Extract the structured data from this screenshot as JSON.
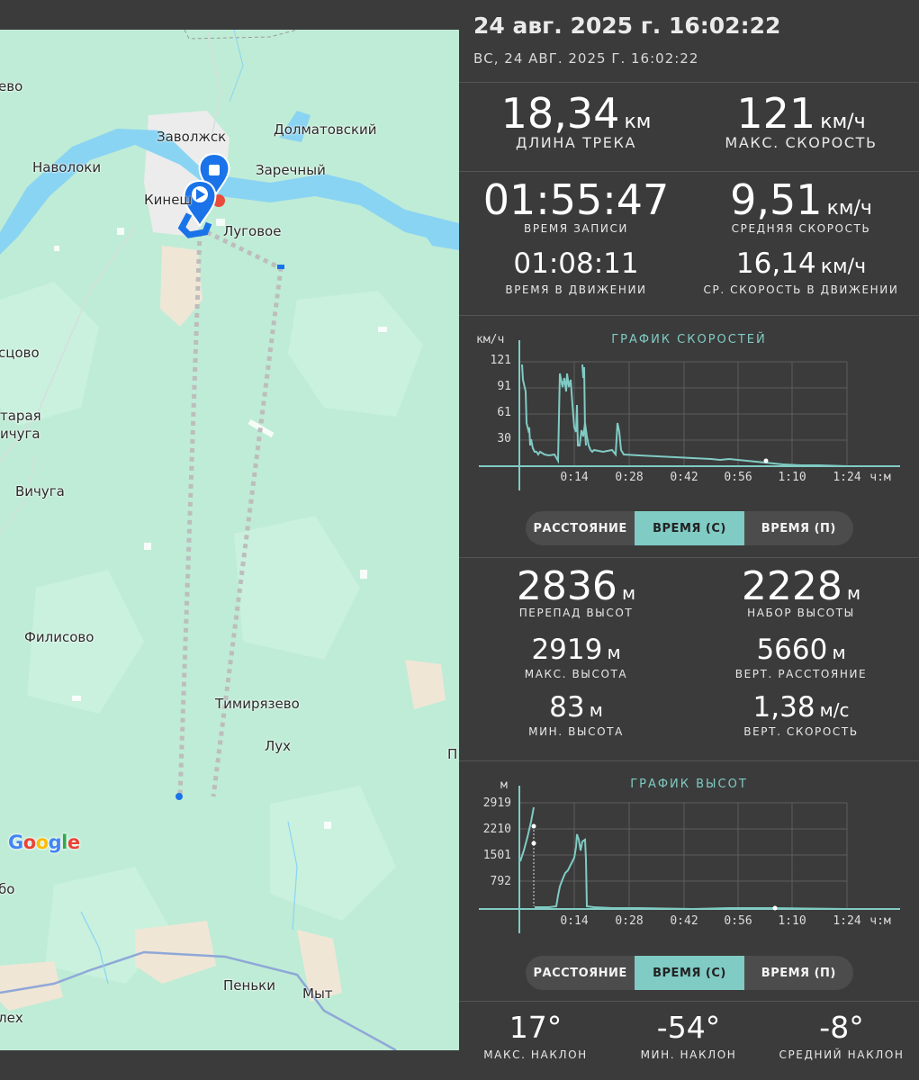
{
  "header": {
    "title": "24 авг. 2025 г. 16:02:22",
    "subtitle": "ВС, 24 АВГ. 2025 Г. 16:02:22"
  },
  "map": {
    "labels": [
      "ево",
      "Заволжск",
      "Долматовский",
      "Наволоки",
      "Заречный",
      "Кинеш",
      "Луговое",
      "сцово",
      "тарая",
      "ичуга",
      "Вичуга",
      "Филисово",
      "Тимирязево",
      "Лух",
      "П",
      "бо",
      "Пеньки",
      "Мыт",
      "лех"
    ],
    "brand": "Google",
    "colors": {
      "land": "#bfecd6",
      "water": "#8ad4f3",
      "route": "#b8b8b8",
      "marker": "#1a73e8"
    }
  },
  "summary": {
    "track_length": {
      "value": "18,34",
      "unit": "км",
      "label": "ДЛИНА ТРЕКА"
    },
    "max_speed": {
      "value": "121",
      "unit": "км/ч",
      "label": "МАКС. СКОРОСТЬ"
    },
    "record_time": {
      "value": "01:55:47",
      "label": "ВРЕМЯ ЗАПИСИ"
    },
    "avg_speed": {
      "value": "9,51",
      "unit": "км/ч",
      "label": "СРЕДНЯЯ СКОРОСТЬ"
    },
    "moving_time": {
      "value": "01:08:11",
      "label": "ВРЕМЯ В ДВИЖЕНИИ"
    },
    "avg_moving_speed": {
      "value": "16,14",
      "unit": "км/ч",
      "label": "СР. СКОРОСТЬ В ДВИЖЕНИИ"
    }
  },
  "speed_chart": {
    "title": "ГРАФИК СКОРОСТЕЙ",
    "y_unit": "км/ч",
    "x_unit": "ч:м",
    "y_ticks": [
      "121",
      "91",
      "61",
      "30"
    ],
    "x_ticks": [
      "0:14",
      "0:28",
      "0:42",
      "0:56",
      "1:10",
      "1:24"
    ],
    "color": "#80cbc4"
  },
  "speed_toggle": {
    "options": [
      "РАССТОЯНИЕ",
      "ВРЕМЯ (С)",
      "ВРЕМЯ (П)"
    ],
    "active": 1
  },
  "elevation": {
    "drop": {
      "value": "2836",
      "unit": "м",
      "label": "ПЕРЕПАД ВЫСОТ"
    },
    "gain": {
      "value": "2228",
      "unit": "м",
      "label": "НАБОР ВЫСОТЫ"
    },
    "max_alt": {
      "value": "2919",
      "unit": "м",
      "label": "МАКС. ВЫСОТА"
    },
    "vert_dist": {
      "value": "5660",
      "unit": "м",
      "label": "ВЕРТ. РАССТОЯНИЕ"
    },
    "min_alt": {
      "value": "83",
      "unit": "м",
      "label": "МИН. ВЫСОТА"
    },
    "vert_speed": {
      "value": "1,38",
      "unit": "м/с",
      "label": "ВЕРТ. СКОРОСТЬ"
    }
  },
  "elevation_chart": {
    "title": "ГРАФИК ВЫСОТ",
    "y_unit": "м",
    "x_unit": "ч:м",
    "y_ticks": [
      "2919",
      "2210",
      "1501",
      "792"
    ],
    "x_ticks": [
      "0:14",
      "0:28",
      "0:42",
      "0:56",
      "1:10",
      "1:24"
    ],
    "color": "#80cbc4"
  },
  "elev_toggle": {
    "options": [
      "РАССТОЯНИЕ",
      "ВРЕМЯ (С)",
      "ВРЕМЯ (П)"
    ],
    "active": 1
  },
  "slope": {
    "max": {
      "value": "17°",
      "label": "МАКС. НАКЛОН"
    },
    "min": {
      "value": "-54°",
      "label": "МИН. НАКЛОН"
    },
    "avg": {
      "value": "-8°",
      "label": "СРЕДНИЙ НАКЛОН"
    }
  }
}
